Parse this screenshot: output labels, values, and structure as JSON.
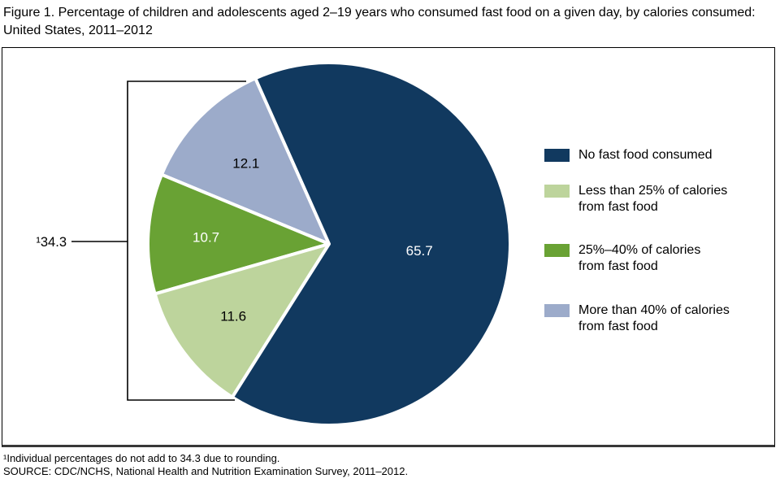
{
  "figure": {
    "title": "Figure 1. Percentage of children and adolescents aged 2–19 years who consumed fast food on a given day, by calories consumed: United States, 2011–2012",
    "footnotes": [
      "¹Individual percentages do not add to 34.3 due to rounding.",
      "SOURCE: CDC/NCHS, National Health and Nutrition Examination Survey, 2011–2012."
    ]
  },
  "chart_data": {
    "type": "pie",
    "title": "Percentage of children and adolescents aged 2–19 years who consumed fast food on a given day, by calories consumed: United States, 2011–2012",
    "units": "percent",
    "slices": [
      {
        "label": "No fast food consumed",
        "value": 65.7,
        "color": "#11395f",
        "value_color": "#ffffff",
        "label_radius": 0.5
      },
      {
        "label": "Less than 25% of calories from fast food",
        "value": 11.6,
        "color": "#bdd49c",
        "value_color": "#000000",
        "label_radius": 0.66
      },
      {
        "label": "25%–40% of calories from fast food",
        "value": 10.7,
        "color": "#69a234",
        "value_color": "#ffffff",
        "label_radius": 0.68
      },
      {
        "label": "More than 40% of calories from fast food",
        "value": 12.1,
        "color": "#9cabca",
        "value_color": "#000000",
        "label_radius": 0.64
      }
    ],
    "draw_order": [
      3,
      2,
      1,
      0
    ],
    "start_angle_deg": 114,
    "bracket_label": "¹34.3",
    "bracket_group_total": 34.3,
    "legend_position": "right",
    "legend": [
      {
        "text": "No fast food consumed"
      },
      {
        "text": "Less than 25% of calories\nfrom fast food"
      },
      {
        "text": "25%–40% of calories\nfrom fast food"
      },
      {
        "text": "More than 40% of calories\nfrom fast food"
      }
    ]
  }
}
